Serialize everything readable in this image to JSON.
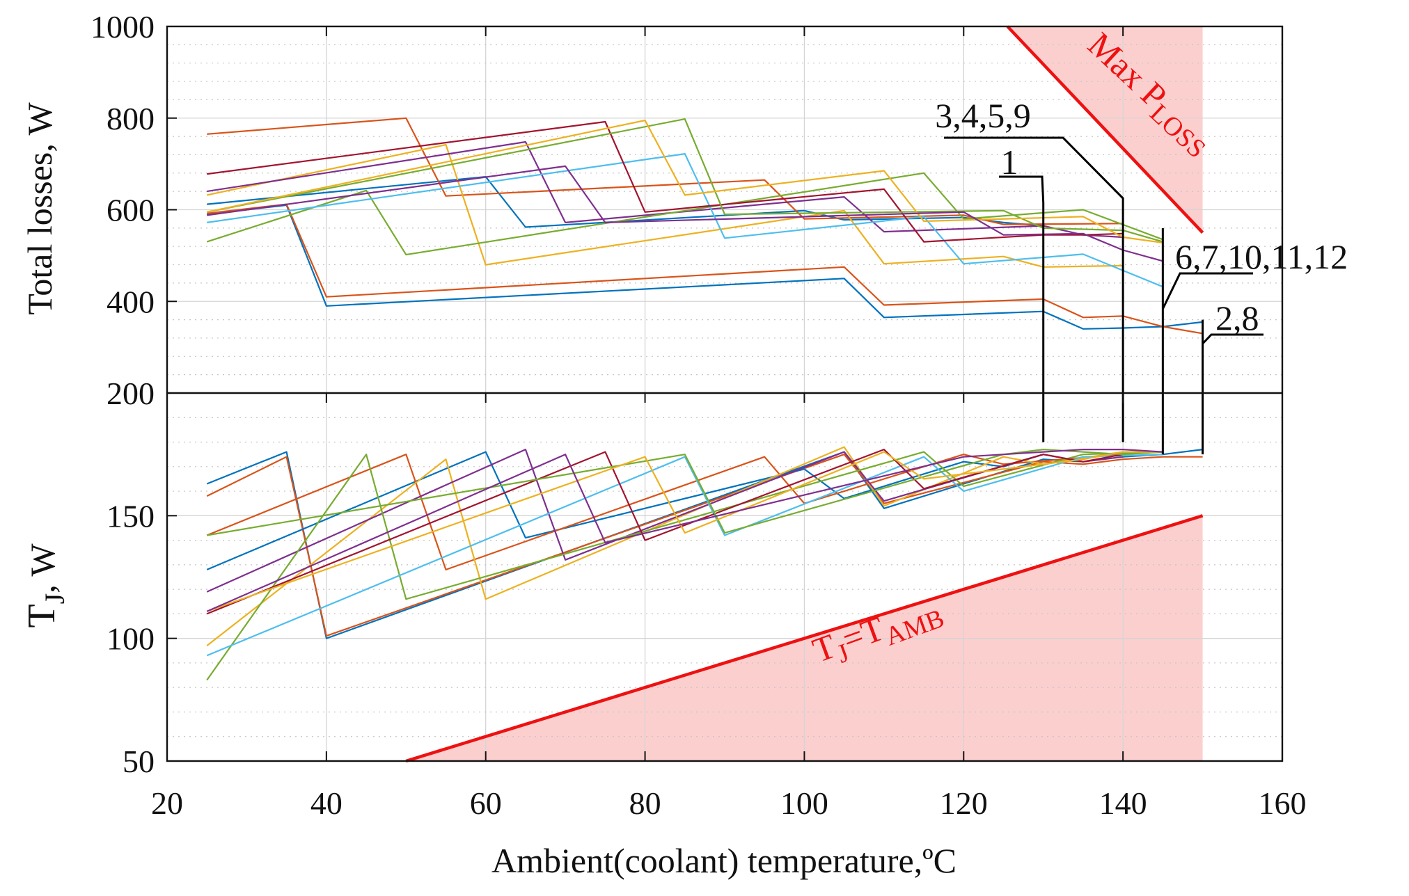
{
  "chart_data": [
    {
      "type": "line",
      "panel": "top",
      "title": "",
      "xlabel": "",
      "ylabel": "Total losses, W",
      "xlim": [
        20,
        160
      ],
      "ylim": [
        200,
        1000
      ],
      "xticks": [
        "20",
        "40",
        "60",
        "80",
        "100",
        "120",
        "140",
        "160"
      ],
      "yticks": [
        "200",
        "400",
        "600",
        "800",
        "1000"
      ],
      "grid": true,
      "limit_region": {
        "label_main": "Max P",
        "label_sub": "LOSS",
        "boundary": [
          [
            125.5,
            1000
          ],
          [
            150,
            550
          ]
        ],
        "shaded_x": [
          125.5,
          150
        ],
        "color": "#ee1111"
      },
      "callouts": [
        {
          "label": "1",
          "x": 130,
          "y_from": 180,
          "y_to": 615
        },
        {
          "label": "3,4,5,9",
          "x": 140,
          "y_from": 180,
          "y_to": 625
        },
        {
          "label": "6,7,10,11,12",
          "x": 145,
          "y_from": 175,
          "y_to": 560
        },
        {
          "label": "2,8",
          "x": 150,
          "y_from": 175,
          "y_to": 360
        }
      ],
      "series": [
        {
          "name": "2",
          "color": "#0072bd",
          "x": [
            25,
            35,
            40,
            105,
            110,
            130,
            135,
            140,
            145,
            150
          ],
          "y": [
            590,
            610,
            390,
            450,
            365,
            378,
            340,
            342,
            345,
            355
          ]
        },
        {
          "name": "8",
          "color": "#d95319",
          "x": [
            25,
            35,
            40,
            105,
            110,
            130,
            135,
            140,
            145,
            150
          ],
          "y": [
            592,
            612,
            410,
            475,
            392,
            405,
            365,
            368,
            345,
            330
          ]
        },
        {
          "name": "1",
          "color": "#0072bd",
          "x": [
            25,
            60,
            65,
            100,
            105,
            120,
            125,
            130
          ],
          "y": [
            612,
            672,
            562,
            598,
            578,
            583,
            572,
            565
          ]
        },
        {
          "name": "3",
          "color": "#d95319",
          "x": [
            25,
            50,
            55,
            95,
            100,
            120,
            125,
            140
          ],
          "y": [
            765,
            800,
            630,
            665,
            580,
            588,
            568,
            570
          ]
        },
        {
          "name": "4",
          "color": "#edb120",
          "x": [
            25,
            55,
            60,
            105,
            110,
            125,
            130,
            140
          ],
          "y": [
            632,
            742,
            480,
            598,
            482,
            498,
            475,
            478
          ]
        },
        {
          "name": "5",
          "color": "#7e2f8e",
          "x": [
            25,
            65,
            70,
            105,
            110,
            130,
            135,
            140
          ],
          "y": [
            640,
            748,
            572,
            628,
            552,
            565,
            545,
            540
          ]
        },
        {
          "name": "6",
          "color": "#77ac30",
          "x": [
            25,
            45,
            50,
            115,
            120,
            135,
            145
          ],
          "y": [
            530,
            642,
            502,
            680,
            580,
            600,
            535
          ]
        },
        {
          "name": "7",
          "color": "#4dbeee",
          "x": [
            25,
            85,
            90,
            115,
            120,
            135,
            145
          ],
          "y": [
            572,
            722,
            538,
            585,
            482,
            503,
            432
          ]
        },
        {
          "name": "9",
          "color": "#a2142f",
          "x": [
            25,
            75,
            80,
            110,
            115,
            130,
            135,
            140
          ],
          "y": [
            678,
            792,
            595,
            645,
            530,
            545,
            545,
            548
          ]
        },
        {
          "name": "10",
          "color": "#77ac30",
          "x": [
            25,
            85,
            90,
            125,
            130,
            140,
            145
          ],
          "y": [
            595,
            798,
            590,
            598,
            560,
            555,
            530
          ]
        },
        {
          "name": "11",
          "color": "#edb120",
          "x": [
            25,
            80,
            85,
            110,
            115,
            135,
            140,
            145
          ],
          "y": [
            595,
            795,
            632,
            685,
            575,
            585,
            540,
            528
          ]
        },
        {
          "name": "12",
          "color": "#7e2f8e",
          "x": [
            25,
            70,
            75,
            120,
            125,
            135,
            140,
            145
          ],
          "y": [
            588,
            695,
            572,
            595,
            545,
            548,
            512,
            488
          ]
        }
      ]
    },
    {
      "type": "line",
      "panel": "bottom",
      "title": "",
      "xlabel": "Ambient(coolant) temperature,ºC",
      "ylabel": "T",
      "ylabel_sub": "J",
      "ylabel_suffix": ", W",
      "xlim": [
        20,
        160
      ],
      "ylim": [
        50,
        200
      ],
      "xticks": [
        "20",
        "40",
        "60",
        "80",
        "100",
        "120",
        "140",
        "160"
      ],
      "yticks": [
        "50",
        "100",
        "150",
        "200"
      ],
      "grid": true,
      "reference_line": {
        "label_main": "T",
        "label_sub1": "J",
        "label_mid": "=T",
        "label_sub2": "AMB",
        "x": [
          50,
          150
        ],
        "y": [
          50,
          150
        ],
        "color": "#ee1111"
      },
      "series": [
        {
          "name": "2",
          "color": "#0072bd",
          "x": [
            25,
            35,
            40,
            105,
            110,
            130,
            135,
            140,
            145,
            150
          ],
          "y": [
            163,
            176,
            100,
            176,
            153,
            173,
            172,
            174,
            175,
            177
          ]
        },
        {
          "name": "8",
          "color": "#d95319",
          "x": [
            25,
            35,
            40,
            105,
            110,
            130,
            135,
            140,
            145,
            150
          ],
          "y": [
            158,
            174,
            101,
            175,
            155,
            172,
            171,
            173,
            174,
            174
          ]
        },
        {
          "name": "1",
          "color": "#0072bd",
          "x": [
            25,
            60,
            65,
            100,
            105,
            120,
            125,
            130
          ],
          "y": [
            128,
            176,
            141,
            169,
            157,
            172,
            170,
            175
          ]
        },
        {
          "name": "3",
          "color": "#d95319",
          "x": [
            25,
            50,
            55,
            95,
            100,
            120,
            125,
            140
          ],
          "y": [
            142,
            175,
            128,
            174,
            155,
            175,
            171,
            175
          ]
        },
        {
          "name": "4",
          "color": "#edb120",
          "x": [
            25,
            55,
            60,
            105,
            110,
            125,
            130,
            140
          ],
          "y": [
            97,
            173,
            116,
            178,
            154,
            174,
            171,
            176
          ]
        },
        {
          "name": "5",
          "color": "#7e2f8e",
          "x": [
            25,
            65,
            70,
            105,
            110,
            130,
            135,
            140
          ],
          "y": [
            119,
            177,
            132,
            176,
            156,
            175,
            172,
            174
          ]
        },
        {
          "name": "6",
          "color": "#77ac30",
          "x": [
            25,
            45,
            50,
            115,
            120,
            135,
            145
          ],
          "y": [
            83,
            175,
            116,
            176,
            162,
            175,
            176
          ]
        },
        {
          "name": "7",
          "color": "#4dbeee",
          "x": [
            25,
            85,
            90,
            115,
            120,
            135,
            145
          ],
          "y": [
            93,
            174,
            142,
            174,
            160,
            174,
            175
          ]
        },
        {
          "name": "9",
          "color": "#a2142f",
          "x": [
            25,
            75,
            80,
            110,
            115,
            130,
            135,
            140
          ],
          "y": [
            110,
            176,
            140,
            177,
            161,
            175,
            172,
            175
          ]
        },
        {
          "name": "10",
          "color": "#77ac30",
          "x": [
            25,
            85,
            90,
            125,
            130,
            140,
            145
          ],
          "y": [
            142,
            175,
            143,
            175,
            177,
            175,
            176
          ]
        },
        {
          "name": "11",
          "color": "#edb120",
          "x": [
            25,
            80,
            85,
            110,
            115,
            135,
            140,
            145
          ],
          "y": [
            111,
            174,
            143,
            176,
            165,
            173,
            176,
            176
          ]
        },
        {
          "name": "12",
          "color": "#7e2f8e",
          "x": [
            25,
            70,
            75,
            120,
            125,
            135,
            140,
            145
          ],
          "y": [
            111,
            175,
            139,
            174,
            175,
            177,
            177,
            176
          ]
        }
      ]
    }
  ]
}
